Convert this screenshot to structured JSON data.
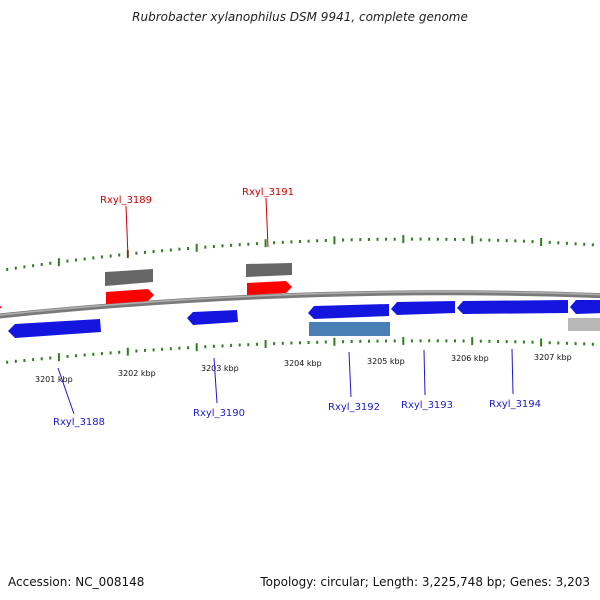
{
  "title": "Rubrobacter xylanophilus DSM 9941, complete genome",
  "footer": {
    "accession": "Accession: NC_008148",
    "summary": "Topology: circular; Length: 3,225,748 bp; Genes: 3,203"
  },
  "colors": {
    "backbone": "#8c8c8c",
    "tick": "#2e7d1e",
    "forward_gene": "#ff0000",
    "forward_rna": "#666666",
    "reverse_gene": "#1515e0",
    "reverse_light": "#4a7fb5",
    "reverse_grey": "#b8b8b8",
    "label_forward": "#cc0000",
    "label_reverse": "#1a1acc"
  },
  "scale": {
    "ticks": [
      "3201 kbp",
      "3202 kbp",
      "3203 kbp",
      "3204 kbp",
      "3205 kbp",
      "3206 kbp",
      "3207 kbp"
    ]
  },
  "genes": [
    {
      "label": "Rxyl_3188",
      "strand": "reverse"
    },
    {
      "label": "Rxyl_3189",
      "strand": "forward"
    },
    {
      "label": "Rxyl_3190",
      "strand": "reverse"
    },
    {
      "label": "Rxyl_3191",
      "strand": "forward"
    },
    {
      "label": "Rxyl_3192",
      "strand": "reverse"
    },
    {
      "label": "Rxyl_3193",
      "strand": "reverse"
    },
    {
      "label": "Rxyl_3194",
      "strand": "reverse"
    }
  ]
}
